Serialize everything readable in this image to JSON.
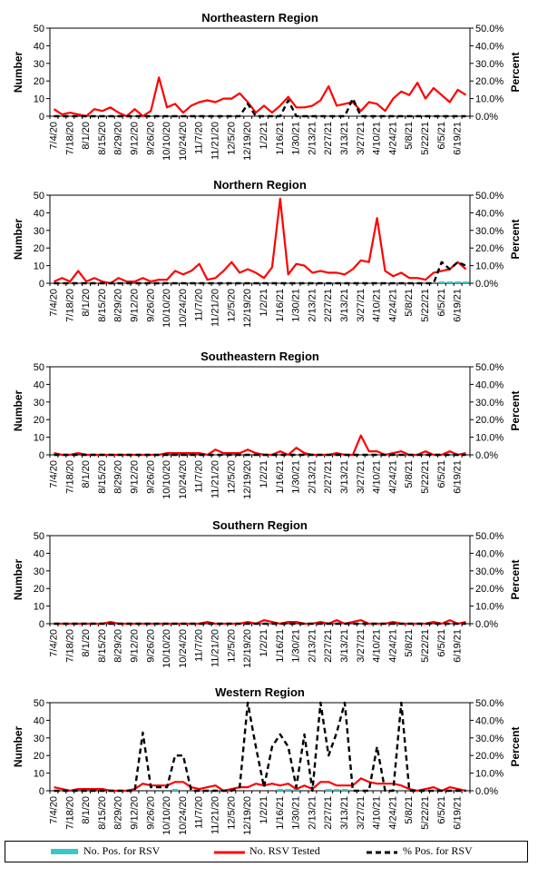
{
  "colors": {
    "positive": "#3CC6C6",
    "tested": "#FF0000",
    "percent": "#000000"
  },
  "legend": {
    "positive": "No. Pos. for RSV",
    "tested": "No. RSV Tested",
    "percent": "% Pos. for RSV"
  },
  "chart_data": [
    {
      "type": "line",
      "title": "Northeastern Region",
      "ylabel": "Number",
      "y2label": "Percent",
      "ylim": [
        0,
        50
      ],
      "y2lim": [
        0,
        50
      ],
      "yticks": [
        "0",
        "10",
        "20",
        "30",
        "40",
        "50"
      ],
      "y2ticks": [
        "0.0%",
        "10.0%",
        "20.0%",
        "30.0%",
        "40.0%",
        "50.0%"
      ],
      "x_tick_labels": [
        "7/4/20",
        "7/18/20",
        "8/1/20",
        "8/15/20",
        "8/29/20",
        "9/12/20",
        "9/26/20",
        "10/10/20",
        "10/24/20",
        "11/7/20",
        "11/21/20",
        "12/5/20",
        "12/19/20",
        "1/2/21",
        "1/16/21",
        "1/30/21",
        "2/13/21",
        "2/27/21",
        "3/13/21",
        "3/27/21",
        "4/10/21",
        "4/24/21",
        "5/8/21",
        "5/22/21",
        "6/5/21",
        "6/19/21"
      ],
      "series": [
        {
          "name": "No. Pos. for RSV",
          "values": [
            0,
            0,
            0,
            0,
            0,
            0,
            0,
            0,
            0,
            0,
            0,
            0,
            0,
            0,
            0,
            0,
            0,
            0,
            0,
            0,
            0,
            0,
            0,
            0,
            0,
            0,
            0,
            0,
            0,
            0,
            0,
            0,
            0,
            0,
            0,
            0,
            0,
            0,
            0,
            0,
            0,
            0,
            0,
            0,
            0,
            0,
            0,
            0,
            0,
            0,
            0,
            0
          ]
        },
        {
          "name": "No. RSV Tested",
          "values": [
            4,
            1,
            2,
            1,
            0,
            4,
            3,
            5,
            2,
            0,
            4,
            0,
            3,
            22,
            5,
            7,
            2,
            6,
            8,
            9,
            8,
            10,
            10,
            13,
            8,
            2,
            6,
            2,
            6,
            11,
            5,
            5,
            6,
            9,
            17,
            6,
            7,
            8,
            3,
            8,
            7,
            3,
            10,
            14,
            12,
            19,
            10,
            16,
            12,
            8,
            15,
            12
          ]
        },
        {
          "name": "% Pos. for RSV",
          "values": [
            0,
            0,
            0,
            0,
            0,
            0,
            0,
            0,
            0,
            0,
            0,
            0,
            0,
            0,
            0,
            0,
            0,
            0,
            0,
            0,
            0,
            0,
            0,
            0,
            7,
            0,
            0,
            0,
            0,
            9,
            0,
            0,
            0,
            0,
            0,
            0,
            0,
            10,
            0,
            0,
            0,
            0,
            0,
            0,
            0,
            0,
            0,
            0,
            0,
            0,
            0,
            0
          ]
        }
      ]
    },
    {
      "type": "line",
      "title": "Northern Region",
      "ylabel": "Number",
      "y2label": "Percent",
      "ylim": [
        0,
        50
      ],
      "y2lim": [
        0,
        50
      ],
      "yticks": [
        "0",
        "10",
        "20",
        "30",
        "40",
        "50"
      ],
      "y2ticks": [
        "0.0%",
        "10.0%",
        "20.0%",
        "30.0%",
        "40.0%",
        "50.0%"
      ],
      "x_tick_labels": [
        "7/4/20",
        "7/18/20",
        "8/1/20",
        "8/15/20",
        "8/29/20",
        "9/12/20",
        "9/26/20",
        "10/10/20",
        "10/24/20",
        "11/7/20",
        "11/21/20",
        "12/5/20",
        "12/19/20",
        "1/2/21",
        "1/16/21",
        "1/30/21",
        "2/13/21",
        "2/27/21",
        "3/13/21",
        "3/27/21",
        "4/10/21",
        "4/24/21",
        "5/8/21",
        "5/22/21",
        "6/5/21",
        "6/19/21"
      ],
      "series": [
        {
          "name": "No. Pos. for RSV",
          "values": [
            0,
            0,
            0,
            0,
            0,
            0,
            0,
            0,
            0,
            0,
            0,
            0,
            0,
            0,
            0,
            0,
            0,
            0,
            0,
            0,
            0,
            0,
            0,
            0,
            0,
            0,
            0,
            0,
            0,
            0,
            0,
            0,
            0,
            0,
            0,
            0,
            0,
            0,
            0,
            0,
            0,
            0,
            0,
            0,
            0,
            0,
            0,
            0,
            1,
            1,
            1,
            1
          ]
        },
        {
          "name": "No. RSV Tested",
          "values": [
            1,
            3,
            1,
            7,
            1,
            3,
            1,
            0,
            3,
            1,
            1,
            3,
            1,
            2,
            2,
            7,
            5,
            7,
            11,
            2,
            3,
            7,
            12,
            6,
            8,
            6,
            3,
            9,
            48,
            5,
            11,
            10,
            6,
            7,
            6,
            6,
            5,
            8,
            13,
            12,
            37,
            7,
            4,
            6,
            3,
            3,
            2,
            6,
            7,
            8,
            12,
            8
          ]
        },
        {
          "name": "% Pos. for RSV",
          "values": [
            0,
            0,
            0,
            0,
            0,
            0,
            0,
            0,
            0,
            0,
            0,
            0,
            0,
            0,
            0,
            0,
            0,
            0,
            0,
            0,
            0,
            0,
            0,
            0,
            0,
            0,
            0,
            0,
            0,
            0,
            0,
            0,
            0,
            0,
            0,
            0,
            0,
            0,
            0,
            0,
            0,
            0,
            0,
            0,
            0,
            0,
            0,
            0,
            12,
            8,
            12,
            10
          ]
        }
      ]
    },
    {
      "type": "line",
      "title": "Southeastern Region",
      "ylabel": "Number",
      "y2label": "Percent",
      "ylim": [
        0,
        50
      ],
      "y2lim": [
        0,
        50
      ],
      "yticks": [
        "0",
        "10",
        "20",
        "30",
        "40",
        "50"
      ],
      "y2ticks": [
        "0.0%",
        "10.0%",
        "20.0%",
        "30.0%",
        "40.0%",
        "50.0%"
      ],
      "x_tick_labels": [
        "7/4/20",
        "7/18/20",
        "8/1/20",
        "8/15/20",
        "8/29/20",
        "9/12/20",
        "9/26/20",
        "10/10/20",
        "10/24/20",
        "11/7/20",
        "11/21/20",
        "12/5/20",
        "12/19/20",
        "1/2/21",
        "1/16/21",
        "1/30/21",
        "2/13/21",
        "2/27/21",
        "3/13/21",
        "3/27/21",
        "4/10/21",
        "4/24/21",
        "5/8/21",
        "5/22/21",
        "6/5/21",
        "6/19/21"
      ],
      "series": [
        {
          "name": "No. Pos. for RSV",
          "values": [
            0,
            0,
            0,
            0,
            0,
            0,
            0,
            0,
            0,
            0,
            0,
            0,
            0,
            0,
            0,
            0,
            0,
            0,
            0,
            0,
            0,
            0,
            0,
            0,
            0,
            0,
            0,
            0,
            0,
            0,
            0,
            0,
            0,
            0,
            0,
            0,
            0,
            0,
            0,
            0,
            0,
            0,
            0,
            0,
            0,
            0,
            0,
            0,
            0,
            0,
            0,
            0
          ]
        },
        {
          "name": "No. RSV Tested",
          "values": [
            1,
            0,
            0,
            1,
            0,
            0,
            0,
            0,
            0,
            0,
            0,
            0,
            0,
            0,
            1,
            1,
            1,
            1,
            1,
            0,
            3,
            1,
            1,
            1,
            3,
            1,
            0,
            0,
            2,
            0,
            4,
            1,
            0,
            0,
            0,
            1,
            0,
            0,
            11,
            2,
            2,
            0,
            1,
            2,
            0,
            0,
            2,
            0,
            0,
            2,
            0,
            1
          ]
        },
        {
          "name": "% Pos. for RSV",
          "values": [
            0,
            0,
            0,
            0,
            0,
            0,
            0,
            0,
            0,
            0,
            0,
            0,
            0,
            0,
            0,
            0,
            0,
            0,
            0,
            0,
            0,
            0,
            0,
            0,
            0,
            0,
            0,
            0,
            0,
            0,
            0,
            0,
            0,
            0,
            0,
            0,
            0,
            0,
            0,
            0,
            0,
            0,
            0,
            0,
            0,
            0,
            0,
            0,
            0,
            0,
            0,
            0
          ]
        }
      ]
    },
    {
      "type": "line",
      "title": "Southern Region",
      "ylabel": "Number",
      "y2label": "Percent",
      "ylim": [
        0,
        50
      ],
      "y2lim": [
        0,
        50
      ],
      "yticks": [
        "0",
        "10",
        "20",
        "30",
        "40",
        "50"
      ],
      "y2ticks": [
        "0.0%",
        "10.0%",
        "20.0%",
        "30.0%",
        "40.0%",
        "50.0%"
      ],
      "x_tick_labels": [
        "7/4/20",
        "7/18/20",
        "8/1/20",
        "8/15/20",
        "8/29/20",
        "9/12/20",
        "9/26/20",
        "10/10/20",
        "10/24/20",
        "11/7/20",
        "11/21/20",
        "12/5/20",
        "12/19/20",
        "1/2/21",
        "1/16/21",
        "1/30/21",
        "2/13/21",
        "2/27/21",
        "3/13/21",
        "3/27/21",
        "4/10/21",
        "4/24/21",
        "5/8/21",
        "5/22/21",
        "6/5/21",
        "6/19/21"
      ],
      "series": [
        {
          "name": "No. Pos. for RSV",
          "values": [
            0,
            0,
            0,
            0,
            0,
            0,
            0,
            0,
            0,
            0,
            0,
            0,
            0,
            0,
            0,
            0,
            0,
            0,
            0,
            0,
            0,
            0,
            0,
            0,
            0,
            0,
            0,
            0,
            0,
            0,
            0,
            0,
            0,
            0,
            0,
            0,
            0,
            0,
            0,
            0,
            0,
            0,
            0,
            0,
            0,
            0,
            0,
            0,
            0,
            0,
            0,
            0
          ]
        },
        {
          "name": "No. RSV Tested",
          "values": [
            0,
            0,
            0,
            0,
            0,
            0,
            0,
            1,
            0,
            0,
            0,
            0,
            0,
            0,
            0,
            0,
            0,
            0,
            0,
            1,
            0,
            0,
            0,
            0,
            1,
            0,
            2,
            1,
            0,
            1,
            1,
            0,
            0,
            1,
            0,
            2,
            0,
            1,
            2,
            0,
            0,
            0,
            1,
            0,
            0,
            0,
            0,
            1,
            0,
            2,
            0,
            1
          ]
        },
        {
          "name": "% Pos. for RSV",
          "values": [
            0,
            0,
            0,
            0,
            0,
            0,
            0,
            0,
            0,
            0,
            0,
            0,
            0,
            0,
            0,
            0,
            0,
            0,
            0,
            0,
            0,
            0,
            0,
            0,
            0,
            0,
            0,
            0,
            0,
            0,
            0,
            0,
            0,
            0,
            0,
            0,
            0,
            0,
            0,
            0,
            0,
            0,
            0,
            0,
            0,
            0,
            0,
            0,
            0,
            0,
            0,
            0
          ]
        }
      ]
    },
    {
      "type": "line",
      "title": "Western Region",
      "ylabel": "Number",
      "y2label": "Percent",
      "ylim": [
        0,
        50
      ],
      "y2lim": [
        0,
        50
      ],
      "yticks": [
        "0",
        "10",
        "20",
        "30",
        "40",
        "50"
      ],
      "y2ticks": [
        "0.0%",
        "10.0%",
        "20.0%",
        "30.0%",
        "40.0%",
        "50.0%"
      ],
      "x_tick_labels": [
        "7/4/20",
        "7/18/20",
        "8/1/20",
        "8/15/20",
        "8/29/20",
        "9/12/20",
        "9/26/20",
        "10/10/20",
        "10/24/20",
        "11/7/20",
        "11/21/20",
        "12/5/20",
        "12/19/20",
        "1/2/21",
        "1/16/21",
        "1/30/21",
        "2/13/21",
        "2/27/21",
        "3/13/21",
        "3/27/21",
        "4/10/21",
        "4/24/21",
        "5/8/21",
        "5/22/21",
        "6/5/21",
        "6/19/21"
      ],
      "series": [
        {
          "name": "No. Pos. for RSV",
          "values": [
            0,
            0,
            0,
            0,
            0,
            0,
            0,
            0,
            0,
            0,
            0,
            0,
            0,
            0,
            0,
            1,
            0,
            0,
            0,
            0,
            0,
            0,
            0,
            0,
            0,
            0,
            0,
            0,
            1,
            1,
            1,
            0,
            0,
            0,
            1,
            1,
            1,
            0,
            0,
            0,
            0,
            0,
            0,
            0,
            0,
            0,
            0,
            0,
            0,
            0,
            0,
            0
          ]
        },
        {
          "name": "No. RSV Tested",
          "values": [
            2,
            1,
            0,
            1,
            1,
            1,
            1,
            0,
            0,
            0,
            1,
            4,
            3,
            3,
            3,
            5,
            5,
            2,
            1,
            2,
            3,
            0,
            1,
            2,
            2,
            4,
            3,
            4,
            3,
            4,
            1,
            3,
            1,
            5,
            5,
            3,
            3,
            3,
            7,
            5,
            4,
            4,
            4,
            3,
            1,
            0,
            1,
            2,
            0,
            2,
            1,
            0
          ]
        },
        {
          "name": "% Pos. for RSV",
          "values": [
            0,
            0,
            0,
            0,
            0,
            0,
            0,
            0,
            0,
            0,
            0,
            33,
            2,
            2,
            2,
            20,
            20,
            0,
            0,
            0,
            0,
            0,
            0,
            2,
            50,
            25,
            2,
            25,
            32,
            25,
            2,
            32,
            0,
            50,
            20,
            33,
            50,
            0,
            0,
            0,
            25,
            0,
            0,
            50,
            0,
            0,
            0,
            0,
            0,
            0,
            0,
            0
          ]
        }
      ]
    }
  ]
}
